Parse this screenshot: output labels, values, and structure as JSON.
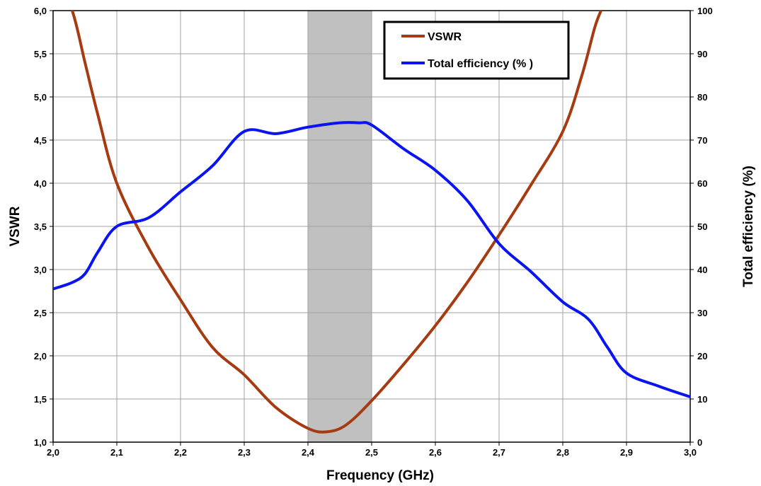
{
  "chart_data": {
    "type": "line",
    "xlabel": "Frequency (GHz)",
    "ylabel": "VSWR",
    "y2label": "Total efficiency (%)",
    "xlim": [
      2.0,
      3.0
    ],
    "ylim": [
      1.0,
      6.0
    ],
    "y2lim": [
      0,
      100
    ],
    "grid": true,
    "legend_position": "top-center",
    "x_ticks": [
      "2,0",
      "2,1",
      "2,2",
      "2,3",
      "2,4",
      "2,5",
      "2,6",
      "2,7",
      "2,8",
      "2,9",
      "3,0"
    ],
    "y_ticks": [
      "1,0",
      "1,5",
      "2,0",
      "2,5",
      "3,0",
      "3,5",
      "4,0",
      "4,5",
      "5,0",
      "5,5",
      "6,0"
    ],
    "y2_ticks": [
      "0",
      "10",
      "20",
      "30",
      "40",
      "50",
      "60",
      "70",
      "80",
      "90",
      "100"
    ],
    "highlight_band": {
      "x_start": 2.4,
      "x_end": 2.5,
      "color": "#c0c0c0"
    },
    "series": [
      {
        "name": "VSWR",
        "axis": "left",
        "color": "#a63a10",
        "x": [
          2.0,
          2.03,
          2.05,
          2.07,
          2.1,
          2.15,
          2.2,
          2.25,
          2.3,
          2.35,
          2.4,
          2.43,
          2.46,
          2.5,
          2.55,
          2.6,
          2.65,
          2.7,
          2.75,
          2.8,
          2.83,
          2.85,
          2.86
        ],
        "y": [
          6.5,
          6.0,
          5.4,
          4.8,
          4.0,
          3.25,
          2.65,
          2.1,
          1.78,
          1.4,
          1.16,
          1.12,
          1.2,
          1.48,
          1.9,
          2.35,
          2.85,
          3.4,
          3.98,
          4.6,
          5.25,
          5.8,
          6.0
        ]
      },
      {
        "name": "Total efficiency (% )",
        "axis": "right",
        "color": "#0a14f0",
        "x": [
          2.0,
          2.03,
          2.05,
          2.07,
          2.1,
          2.15,
          2.2,
          2.25,
          2.3,
          2.35,
          2.4,
          2.45,
          2.48,
          2.5,
          2.55,
          2.6,
          2.65,
          2.7,
          2.75,
          2.8,
          2.84,
          2.87,
          2.9,
          2.95,
          3.0
        ],
        "y": [
          35.5,
          37,
          39,
          44,
          50,
          52,
          58,
          64,
          72,
          71.5,
          73,
          74,
          74,
          73.5,
          68,
          63,
          56,
          46,
          39.5,
          32.5,
          28.5,
          22,
          16,
          13,
          10.5
        ]
      }
    ]
  }
}
